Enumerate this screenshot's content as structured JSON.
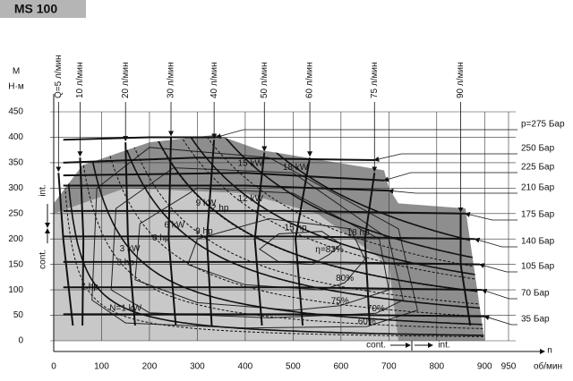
{
  "chart_data": {
    "type": "motor-map",
    "title": "MS 100",
    "y_label": "M",
    "y_unit": "Н·м",
    "x_label": "n",
    "x_unit": "об/мин",
    "xlim": [
      0,
      950
    ],
    "ylim": [
      0,
      450
    ],
    "xticks": [
      0,
      100,
      200,
      300,
      400,
      500,
      600,
      700,
      800,
      900,
      950
    ],
    "yticks": [
      0,
      50,
      100,
      150,
      200,
      250,
      300,
      350,
      400,
      450
    ],
    "grid": true,
    "regions": [
      {
        "color": "#8e8e8e",
        "x": [
          0,
          0,
          60,
          200,
          340,
          430,
          690,
          700,
          720,
          860,
          900
        ],
        "values": [
          0,
          270,
          345,
          390,
          405,
          375,
          335,
          300,
          270,
          260,
          0
        ]
      },
      {
        "color": "#c8c8c8",
        "x": [
          0,
          0,
          150,
          400,
          550,
          700,
          720
        ],
        "values": [
          0,
          250,
          300,
          290,
          250,
          150,
          0
        ]
      }
    ],
    "flow_lines": [
      {
        "name": "Q=5 л/мин",
        "x": [
          10,
          20,
          40
        ],
        "values": [
          330,
          200,
          30
        ]
      },
      {
        "name": "10 л/мин",
        "x": [
          55,
          62,
          60
        ],
        "values": [
          360,
          200,
          30
        ]
      },
      {
        "name": "20 л/мин",
        "x": [
          150,
          155,
          170
        ],
        "values": [
          390,
          200,
          30
        ]
      },
      {
        "name": "30 л/мин",
        "x": [
          245,
          240,
          255
        ],
        "values": [
          400,
          200,
          30
        ]
      },
      {
        "name": "40 л/мин",
        "x": [
          335,
          320,
          330
        ],
        "values": [
          395,
          200,
          30
        ]
      },
      {
        "name": "50 л/мин",
        "x": [
          440,
          420,
          435
        ],
        "values": [
          370,
          200,
          30
        ]
      },
      {
        "name": "60 л/мин",
        "x": [
          535,
          505,
          520
        ],
        "values": [
          360,
          200,
          30
        ]
      },
      {
        "name": "75 л/мин",
        "x": [
          670,
          650,
          660
        ],
        "values": [
          330,
          200,
          30
        ]
      },
      {
        "name": "90 л/мин",
        "x": [
          850,
          850,
          870
        ],
        "values": [
          250,
          150,
          30
        ]
      }
    ],
    "pressure_lines": [
      {
        "name": "p=275 Бар",
        "x": [
          20,
          200,
          340
        ],
        "values": [
          395,
          400,
          400
        ]
      },
      {
        "name": "250 Бар",
        "x": [
          20,
          300,
          670
        ],
        "values": [
          350,
          360,
          355
        ]
      },
      {
        "name": "225 Бар",
        "x": [
          20,
          400,
          690
        ],
        "values": [
          325,
          330,
          315
        ]
      },
      {
        "name": "210 Бар",
        "x": [
          20,
          400,
          700
        ],
        "values": [
          305,
          305,
          295
        ]
      },
      {
        "name": "175 Бар",
        "x": [
          20,
          500,
          860
        ],
        "values": [
          255,
          255,
          250
        ]
      },
      {
        "name": "140 Бар",
        "x": [
          20,
          500,
          880
        ],
        "values": [
          205,
          205,
          200
        ]
      },
      {
        "name": "105 Бар",
        "x": [
          20,
          500,
          890
        ],
        "values": [
          155,
          155,
          150
        ]
      },
      {
        "name": "70 Бар",
        "x": [
          20,
          500,
          895
        ],
        "values": [
          105,
          105,
          100
        ]
      },
      {
        "name": "35 Бар",
        "x": [
          20,
          500,
          900
        ],
        "values": [
          52,
          52,
          48
        ]
      }
    ],
    "power_kw": [
      {
        "name": "N=1 kW",
        "value": 1
      },
      {
        "name": "3 kW",
        "value": 3
      },
      {
        "name": "6 kW",
        "value": 6
      },
      {
        "name": "9 kW",
        "value": 9
      },
      {
        "name": "12 kW",
        "value": 12
      },
      {
        "name": "15 kW",
        "value": 15
      },
      {
        "name": "18 kW",
        "value": 18
      }
    ],
    "power_hp": [
      {
        "name": "1 hp",
        "value": 1
      },
      {
        "name": "3 hp",
        "value": 3
      },
      {
        "name": "6 hp",
        "value": 6
      },
      {
        "name": "9 hp",
        "value": 9
      },
      {
        "name": "12 hp",
        "value": 12
      },
      {
        "name": "15 hp",
        "value": 15
      },
      {
        "name": "18 hp",
        "value": 18
      }
    ],
    "efficiency": [
      {
        "name": "η=83%",
        "x": [
          576,
          540,
          470,
          430,
          470,
          560,
          600
        ],
        "values": [
          170,
          150,
          155,
          180,
          210,
          215,
          190
        ]
      },
      {
        "name": "80%",
        "x": [
          608,
          560,
          400,
          280,
          300,
          450,
          620,
          650
        ],
        "values": [
          114,
          100,
          110,
          150,
          200,
          240,
          220,
          160
        ]
      },
      {
        "name": "75%",
        "x": [
          598,
          500,
          300,
          170,
          180,
          300,
          500,
          680,
          700
        ],
        "values": [
          69,
          60,
          75,
          120,
          230,
          300,
          290,
          200,
          100
        ]
      },
      {
        "name": "70%",
        "x": [
          673,
          450,
          200,
          120,
          130,
          250,
          500,
          700,
          730
        ],
        "values": [
          54,
          45,
          55,
          100,
          260,
          340,
          330,
          200,
          80
        ]
      },
      {
        "name": "60%",
        "x": [
          654,
          400,
          150,
          80,
          90,
          200,
          450,
          720,
          760
        ],
        "values": [
          28,
          25,
          35,
          80,
          300,
          380,
          360,
          220,
          60
        ]
      }
    ],
    "annotations": {
      "int_left": "int.",
      "cont_left": "cont.",
      "cont_bottom": "cont.",
      "int_bottom": "int."
    }
  }
}
